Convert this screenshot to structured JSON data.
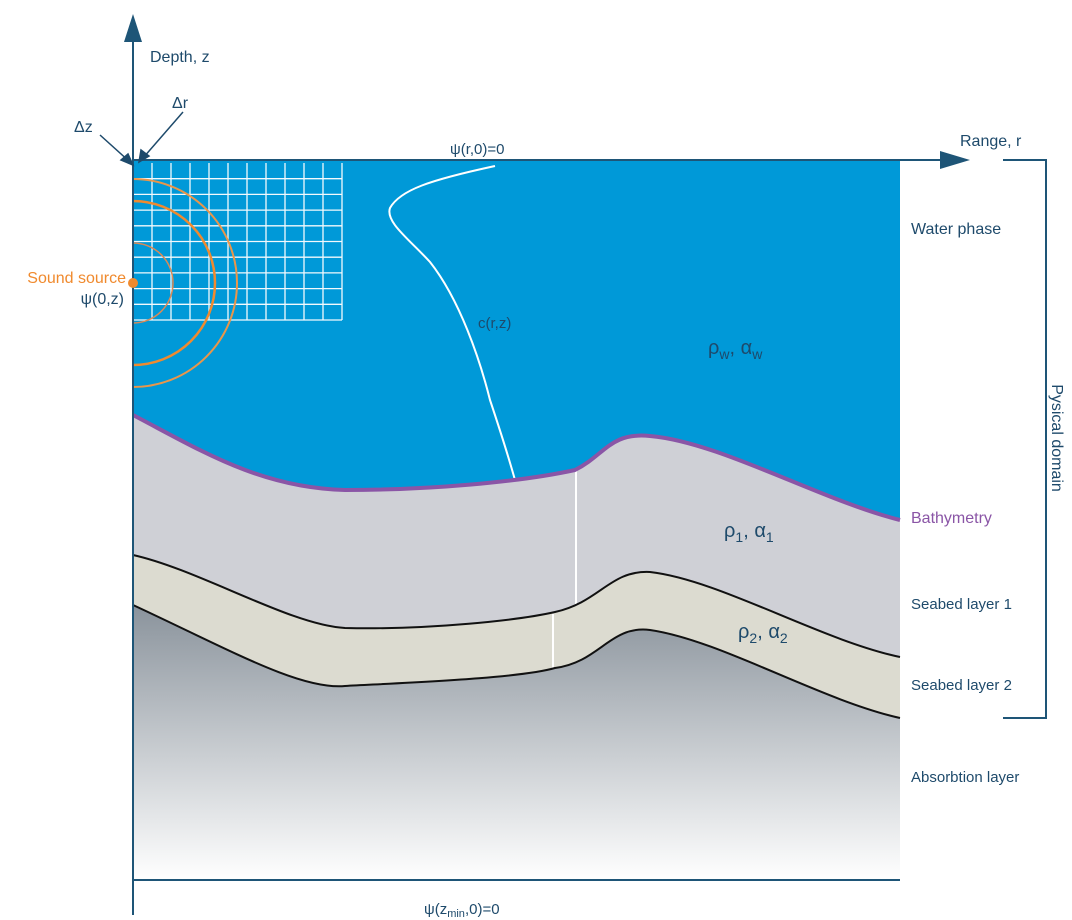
{
  "axes": {
    "depth_label": "Depth, z",
    "range_label": "Range, r",
    "delta_z": "Δz",
    "delta_r": "Δr"
  },
  "boundary_conditions": {
    "surface": "ψ(r,0)=0",
    "bottom_prefix": "ψ(z",
    "bottom_sub": "min",
    "bottom_suffix": ",0)=0"
  },
  "source": {
    "label": "Sound source",
    "initial_field": "ψ(0,z)"
  },
  "sound_speed_label": "c(r,z)",
  "water": {
    "rho": "ρ",
    "rho_sub": "w",
    "alpha": "α",
    "alpha_sub": "w",
    "separator": ", "
  },
  "layer1_params": {
    "rho": "ρ",
    "rho_sub": "1",
    "alpha": "α",
    "alpha_sub": "1",
    "separator": ", "
  },
  "layer2_params": {
    "rho": "ρ",
    "rho_sub": "2",
    "alpha": "α",
    "alpha_sub": "2",
    "separator": ", "
  },
  "layers": {
    "water": "Water phase",
    "bathymetry": "Bathymetry",
    "seabed1": "Seabed layer 1",
    "seabed2": "Seabed layer 2",
    "absorption": "Absorbtion layer"
  },
  "domain_label": "Pysical domain",
  "colors": {
    "water": "#0099d8",
    "seabed1": "#cfd0d6",
    "seabed2": "#dcdbd0",
    "axis": "#1e5577",
    "source": "#f08a2e",
    "bathymetry": "#8a55a6",
    "text": "#1e4a6b"
  }
}
